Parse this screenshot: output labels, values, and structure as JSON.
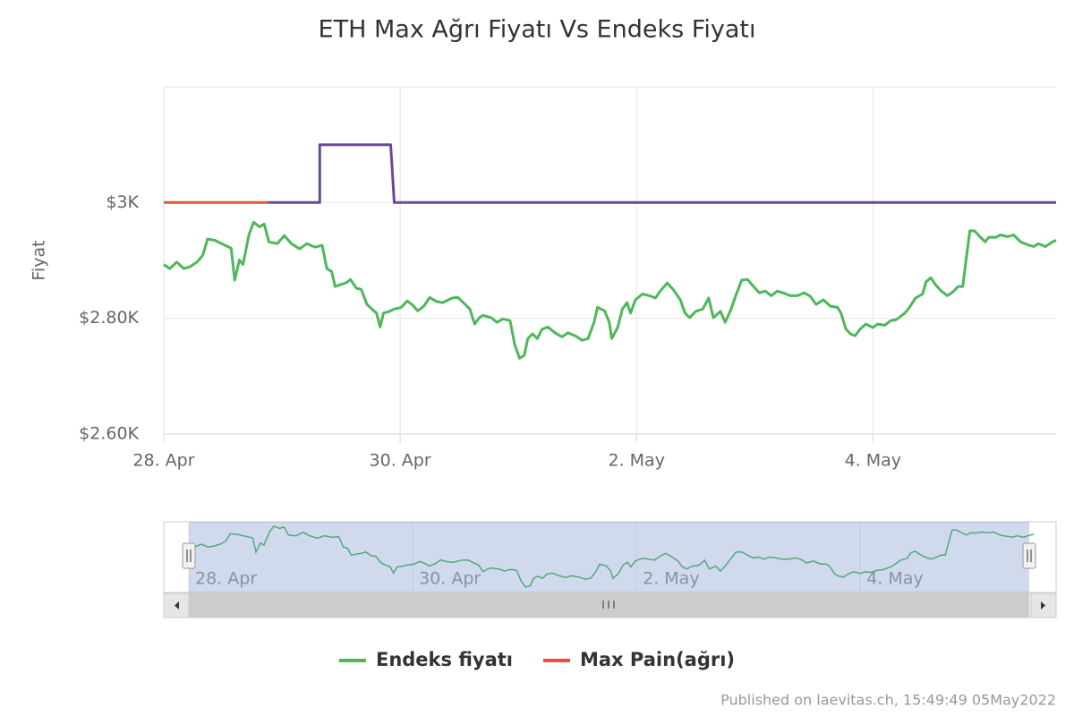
{
  "chart_data": {
    "type": "line",
    "title": "ETH Max Ağrı Fiyatı Vs Endeks Fiyatı",
    "y_label": "Fiyat",
    "credits": "Published on laevitas.ch, 15:49:49 05May2022",
    "xlim": [
      0,
      7.55
    ],
    "xticks": [
      {
        "value": 0,
        "label": "28. Apr"
      },
      {
        "value": 2,
        "label": "30. Apr"
      },
      {
        "value": 4,
        "label": "2. May"
      },
      {
        "value": 6,
        "label": "4. May"
      }
    ],
    "ylim": [
      2600,
      3200
    ],
    "yticks": [
      {
        "value": 2600,
        "label": "$2.60K"
      },
      {
        "value": 2800,
        "label": "$2.80K"
      },
      {
        "value": 3000,
        "label": "$3K"
      }
    ],
    "grid": true,
    "legend": "bottom",
    "series": [
      {
        "name": "Endeks fiyatı",
        "color": "#4db85a",
        "x": [
          0.0,
          0.05,
          0.11,
          0.17,
          0.22,
          0.28,
          0.33,
          0.37,
          0.43,
          0.51,
          0.57,
          0.6,
          0.64,
          0.67,
          0.72,
          0.76,
          0.81,
          0.85,
          0.89,
          0.96,
          1.02,
          1.08,
          1.15,
          1.21,
          1.28,
          1.34,
          1.38,
          1.42,
          1.45,
          1.49,
          1.54,
          1.58,
          1.63,
          1.67,
          1.72,
          1.76,
          1.8,
          1.83,
          1.86,
          1.91,
          1.95,
          2.01,
          2.06,
          2.1,
          2.15,
          2.2,
          2.25,
          2.31,
          2.36,
          2.44,
          2.49,
          2.55,
          2.59,
          2.63,
          2.67,
          2.7,
          2.77,
          2.82,
          2.87,
          2.93,
          2.97,
          3.01,
          3.05,
          3.08,
          3.12,
          3.16,
          3.2,
          3.25,
          3.31,
          3.37,
          3.42,
          3.48,
          3.54,
          3.59,
          3.64,
          3.67,
          3.73,
          3.77,
          3.79,
          3.84,
          3.88,
          3.92,
          3.95,
          3.99,
          4.05,
          4.11,
          4.16,
          4.2,
          4.26,
          4.31,
          4.37,
          4.41,
          4.45,
          4.5,
          4.56,
          4.61,
          4.65,
          4.71,
          4.75,
          4.8,
          4.84,
          4.89,
          4.94,
          4.99,
          5.04,
          5.09,
          5.14,
          5.19,
          5.24,
          5.3,
          5.36,
          5.42,
          5.47,
          5.52,
          5.58,
          5.64,
          5.7,
          5.73,
          5.77,
          5.81,
          5.85,
          5.89,
          5.94,
          6.0,
          6.04,
          6.1,
          6.15,
          6.2,
          6.27,
          6.3,
          6.36,
          6.42,
          6.45,
          6.49,
          6.53,
          6.58,
          6.63,
          6.68,
          6.72,
          6.76,
          6.8,
          6.82,
          6.86,
          6.91,
          6.95,
          6.98,
          7.04,
          7.08,
          7.14,
          7.19,
          7.25,
          7.31,
          7.36,
          7.4,
          7.46,
          7.52,
          7.55
        ],
        "values": [
          2893,
          2886,
          2897,
          2886,
          2889,
          2897,
          2909,
          2937,
          2935,
          2927,
          2921,
          2866,
          2901,
          2893,
          2944,
          2966,
          2958,
          2963,
          2932,
          2929,
          2943,
          2929,
          2920,
          2929,
          2923,
          2926,
          2886,
          2881,
          2855,
          2858,
          2861,
          2867,
          2852,
          2850,
          2824,
          2816,
          2809,
          2785,
          2809,
          2812,
          2816,
          2819,
          2830,
          2824,
          2813,
          2821,
          2836,
          2829,
          2827,
          2835,
          2836,
          2824,
          2816,
          2790,
          2801,
          2805,
          2801,
          2793,
          2799,
          2796,
          2754,
          2731,
          2736,
          2765,
          2773,
          2765,
          2781,
          2785,
          2775,
          2768,
          2775,
          2770,
          2762,
          2765,
          2793,
          2819,
          2813,
          2793,
          2765,
          2784,
          2816,
          2827,
          2809,
          2832,
          2842,
          2839,
          2835,
          2847,
          2861,
          2850,
          2832,
          2809,
          2801,
          2812,
          2816,
          2835,
          2801,
          2812,
          2793,
          2816,
          2839,
          2866,
          2867,
          2855,
          2844,
          2847,
          2839,
          2847,
          2844,
          2839,
          2839,
          2844,
          2838,
          2824,
          2832,
          2821,
          2819,
          2809,
          2782,
          2773,
          2770,
          2781,
          2790,
          2784,
          2790,
          2788,
          2796,
          2798,
          2809,
          2816,
          2835,
          2842,
          2863,
          2870,
          2858,
          2847,
          2839,
          2846,
          2855,
          2855,
          2920,
          2951,
          2951,
          2940,
          2932,
          2940,
          2940,
          2944,
          2941,
          2944,
          2932,
          2927,
          2924,
          2929,
          2924,
          2932,
          2935
        ]
      },
      {
        "name": "Max Pain(ağrı)",
        "color": "#e5533f",
        "x": [
          0,
          0.88
        ],
        "values": [
          3000,
          3000
        ]
      },
      {
        "color": "#6a4b91",
        "x": [
          0.88,
          1.32,
          1.32,
          1.92,
          1.95,
          7.55
        ],
        "values": [
          3000,
          3000,
          3100,
          3100,
          3000,
          3000
        ]
      }
    ]
  }
}
